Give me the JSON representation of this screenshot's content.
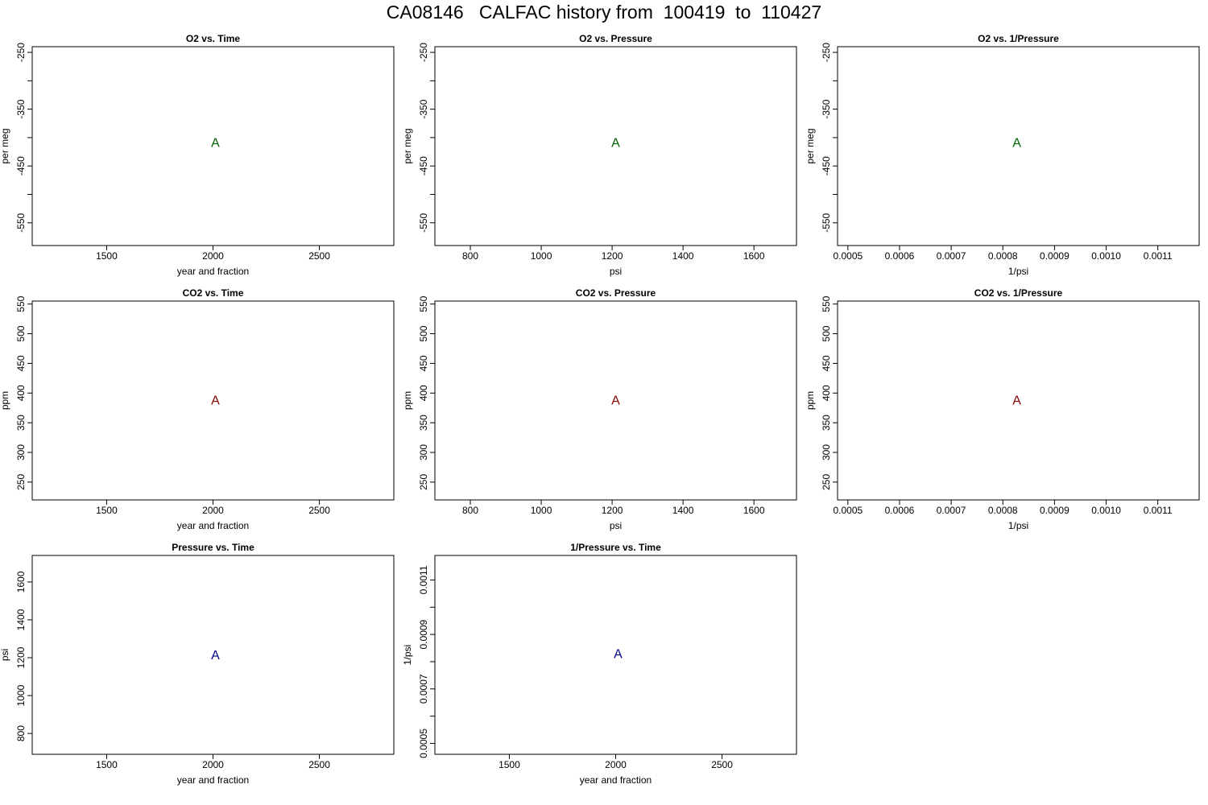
{
  "page_title": "CA08146   CALFAC history from  100419  to  110427",
  "colors": {
    "o2": "#006400",
    "co2": "#8B0000",
    "pressure": "#00008B"
  },
  "chart_data": [
    {
      "id": "o2-vs-time",
      "type": "scatter",
      "title": "O2 vs. Time",
      "xlabel": "year and fraction",
      "ylabel": "per meg",
      "xlim": [
        1150,
        2850
      ],
      "ylim": [
        -590,
        -240
      ],
      "xticks": [
        1500,
        2000,
        2500
      ],
      "xtick_labels": [
        "1500",
        "2000",
        "2500"
      ],
      "yticks": [
        -250,
        -300,
        -350,
        -400,
        -450,
        -500,
        -550
      ],
      "ytick_labels": [
        "-250",
        "",
        "-350",
        "",
        "-450",
        "",
        "-550"
      ],
      "points": [
        {
          "x": 2011.1,
          "y": -410,
          "label": "A"
        }
      ],
      "color": "#006400"
    },
    {
      "id": "o2-vs-pressure",
      "type": "scatter",
      "title": "O2 vs. Pressure",
      "xlabel": "psi",
      "ylabel": "per meg",
      "xlim": [
        700,
        1720
      ],
      "ylim": [
        -590,
        -240
      ],
      "xticks": [
        800,
        1000,
        1200,
        1400,
        1600
      ],
      "xtick_labels": [
        "800",
        "1000",
        "1200",
        "1400",
        "1600"
      ],
      "yticks": [
        -250,
        -300,
        -350,
        -400,
        -450,
        -500,
        -550
      ],
      "ytick_labels": [
        "-250",
        "",
        "-350",
        "",
        "-450",
        "",
        "-550"
      ],
      "points": [
        {
          "x": 1210,
          "y": -410,
          "label": "A"
        }
      ],
      "color": "#006400"
    },
    {
      "id": "o2-vs-inv-pressure",
      "type": "scatter",
      "title": "O2 vs. 1/Pressure",
      "xlabel": "1/psi",
      "ylabel": "per meg",
      "xlim": [
        0.00048,
        0.00118
      ],
      "ylim": [
        -590,
        -240
      ],
      "xticks": [
        0.0005,
        0.0006,
        0.0007,
        0.0008,
        0.0009,
        0.001,
        0.0011
      ],
      "xtick_labels": [
        "0.0005",
        "0.0006",
        "0.0007",
        "0.0008",
        "0.0009",
        "0.0010",
        "0.0011"
      ],
      "yticks": [
        -250,
        -300,
        -350,
        -400,
        -450,
        -500,
        -550
      ],
      "ytick_labels": [
        "-250",
        "",
        "-350",
        "",
        "-450",
        "",
        "-550"
      ],
      "points": [
        {
          "x": 0.000827,
          "y": -410,
          "label": "A"
        }
      ],
      "color": "#006400"
    },
    {
      "id": "co2-vs-time",
      "type": "scatter",
      "title": "CO2 vs. Time",
      "xlabel": "year and fraction",
      "ylabel": "ppm",
      "xlim": [
        1150,
        2850
      ],
      "ylim": [
        220,
        555
      ],
      "xticks": [
        1500,
        2000,
        2500
      ],
      "xtick_labels": [
        "1500",
        "2000",
        "2500"
      ],
      "yticks": [
        250,
        300,
        350,
        400,
        450,
        500,
        550
      ],
      "ytick_labels": [
        "250",
        "300",
        "350",
        "400",
        "450",
        "500",
        "550"
      ],
      "points": [
        {
          "x": 2011.1,
          "y": 387,
          "label": "A"
        }
      ],
      "color": "#8B0000"
    },
    {
      "id": "co2-vs-pressure",
      "type": "scatter",
      "title": "CO2 vs. Pressure",
      "xlabel": "psi",
      "ylabel": "ppm",
      "xlim": [
        700,
        1720
      ],
      "ylim": [
        220,
        555
      ],
      "xticks": [
        800,
        1000,
        1200,
        1400,
        1600
      ],
      "xtick_labels": [
        "800",
        "1000",
        "1200",
        "1400",
        "1600"
      ],
      "yticks": [
        250,
        300,
        350,
        400,
        450,
        500,
        550
      ],
      "ytick_labels": [
        "250",
        "300",
        "350",
        "400",
        "450",
        "500",
        "550"
      ],
      "points": [
        {
          "x": 1210,
          "y": 387,
          "label": "A"
        }
      ],
      "color": "#8B0000"
    },
    {
      "id": "co2-vs-inv-pressure",
      "type": "scatter",
      "title": "CO2 vs. 1/Pressure",
      "xlabel": "1/psi",
      "ylabel": "ppm",
      "xlim": [
        0.00048,
        0.00118
      ],
      "ylim": [
        220,
        555
      ],
      "xticks": [
        0.0005,
        0.0006,
        0.0007,
        0.0008,
        0.0009,
        0.001,
        0.0011
      ],
      "xtick_labels": [
        "0.0005",
        "0.0006",
        "0.0007",
        "0.0008",
        "0.0009",
        "0.0010",
        "0.0011"
      ],
      "yticks": [
        250,
        300,
        350,
        400,
        450,
        500,
        550
      ],
      "ytick_labels": [
        "250",
        "300",
        "350",
        "400",
        "450",
        "500",
        "550"
      ],
      "points": [
        {
          "x": 0.000827,
          "y": 387,
          "label": "A"
        }
      ],
      "color": "#8B0000"
    },
    {
      "id": "pressure-vs-time",
      "type": "scatter",
      "title": "Pressure vs. Time",
      "xlabel": "year and fraction",
      "ylabel": "psi",
      "xlim": [
        1150,
        2850
      ],
      "ylim": [
        690,
        1740
      ],
      "xticks": [
        1500,
        2000,
        2500
      ],
      "xtick_labels": [
        "1500",
        "2000",
        "2500"
      ],
      "yticks": [
        800,
        1000,
        1200,
        1400,
        1600
      ],
      "ytick_labels": [
        "800",
        "1000",
        "1200",
        "1400",
        "1600"
      ],
      "points": [
        {
          "x": 2011.1,
          "y": 1210,
          "label": "A"
        }
      ],
      "color": "#00008B"
    },
    {
      "id": "inv-pressure-vs-time",
      "type": "scatter",
      "title": "1/Pressure vs. Time",
      "xlabel": "year and fraction",
      "ylabel": "1/psi",
      "xlim": [
        1150,
        2850
      ],
      "ylim": [
        0.00046,
        0.00119
      ],
      "xticks": [
        1500,
        2000,
        2500
      ],
      "xtick_labels": [
        "1500",
        "2000",
        "2500"
      ],
      "yticks": [
        0.0005,
        0.0006,
        0.0007,
        0.0008,
        0.0009,
        0.001,
        0.0011
      ],
      "ytick_labels": [
        "0.0005",
        "",
        "0.0007",
        "",
        "0.0009",
        "",
        "0.0011"
      ],
      "points": [
        {
          "x": 2011.1,
          "y": 0.000827,
          "label": "A"
        }
      ],
      "color": "#00008B"
    }
  ]
}
